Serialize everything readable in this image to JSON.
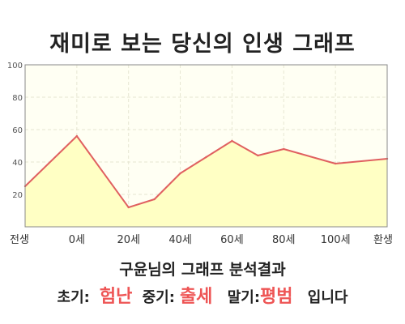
{
  "colors": {
    "plot_bg": "#fffff3",
    "area_fill": "#ffffc4",
    "line": "#e06060",
    "highlight": "#ee5555",
    "axis": "#888888",
    "grid": "#e6e6d2"
  },
  "chart_data": {
    "type": "area",
    "title": "재미로 보는 당신의 인생 그래프",
    "x_tick_labels": [
      "전생",
      "0세",
      "20세",
      "40세",
      "60세",
      "80세",
      "100세",
      "환생"
    ],
    "y_ticks": [
      20,
      40,
      60,
      80,
      100
    ],
    "ylim": [
      0,
      100
    ],
    "grid": true,
    "series": [
      {
        "points": [
          {
            "x": -20,
            "y": 25
          },
          {
            "x": 0,
            "y": 56
          },
          {
            "x": 20,
            "y": 12
          },
          {
            "x": 30,
            "y": 17
          },
          {
            "x": 40,
            "y": 33
          },
          {
            "x": 50,
            "y": 43
          },
          {
            "x": 60,
            "y": 53
          },
          {
            "x": 70,
            "y": 44
          },
          {
            "x": 80,
            "y": 48
          },
          {
            "x": 100,
            "y": 39
          },
          {
            "x": 120,
            "y": 42
          }
        ]
      }
    ]
  },
  "analysis": {
    "title": "구윤님의 그래프 분석결과",
    "early_label": "초기:",
    "early_value": "험난",
    "middle_label": "중기:",
    "middle_value": "출세",
    "late_label": "말기:",
    "late_value": "평범",
    "ending": "입니다"
  }
}
